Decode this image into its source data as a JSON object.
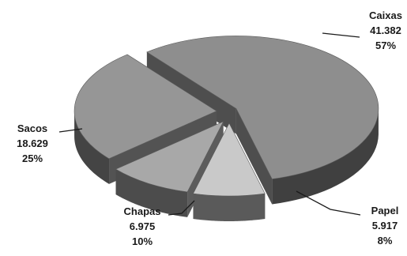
{
  "chart_data": {
    "type": "pie",
    "variant": "3d-exploded",
    "title": "",
    "slices": [
      {
        "label": "Caixas",
        "value": 41382,
        "value_text": "41.382",
        "percent_text": "57%",
        "color": "#8e8e8e"
      },
      {
        "label": "Papel",
        "value": 5917,
        "value_text": "5.917",
        "percent_text": "8%",
        "color": "#c9c9c9"
      },
      {
        "label": "Chapas",
        "value": 6975,
        "value_text": "6.975",
        "percent_text": "10%",
        "color": "#a8a8a8"
      },
      {
        "label": "Sacos",
        "value": 18629,
        "value_text": "18.629",
        "percent_text": "25%",
        "color": "#969696"
      }
    ],
    "legend": "none",
    "grid": false
  }
}
